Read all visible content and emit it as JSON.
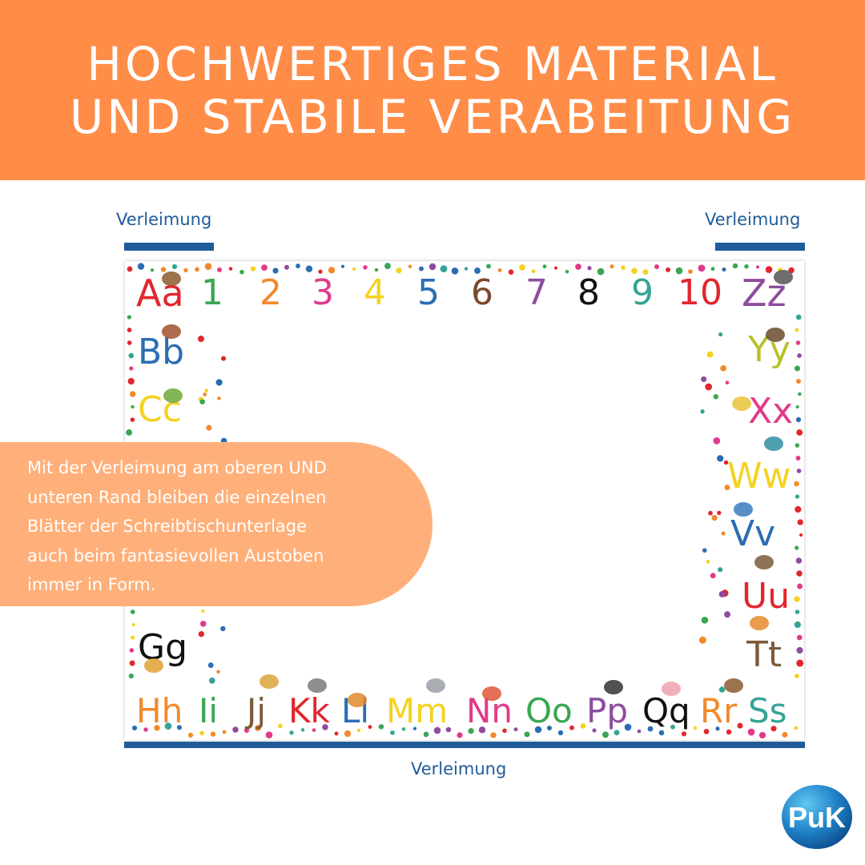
{
  "header": {
    "title_lines": [
      "HOCHWERTIGES MATERIAL",
      "UND STABILE VERABEITUNG"
    ],
    "background": "#ff8c47"
  },
  "glue_markers": {
    "top_left_label": "Verleimung",
    "top_right_label": "Verleimung",
    "bottom_label": "Verleimung",
    "color": "#1f5c99"
  },
  "mat": {
    "numbers": [
      "1",
      "2",
      "3",
      "4",
      "5",
      "6",
      "7",
      "8",
      "9",
      "10"
    ],
    "number_colors": [
      "#3aa651",
      "#f2892b",
      "#e23a8a",
      "#f4d21f",
      "#2b6db3",
      "#7b4a2a",
      "#8e4c9e",
      "#111111",
      "#35a394",
      "#e2262e"
    ],
    "top_corners": [
      {
        "text": "Aa",
        "color": "#e2262e"
      },
      {
        "text": "Zz",
        "color": "#8e4c9e"
      }
    ],
    "left_column": [
      {
        "text": "Bb",
        "color": "#2b6db3"
      },
      {
        "text": "Cc",
        "color": "#f4d21f"
      },
      {
        "text": "Gg",
        "color": "#111111"
      }
    ],
    "right_column": [
      {
        "text": "Yy",
        "color": "#b8c02a"
      },
      {
        "text": "Xx",
        "color": "#e23a8a"
      },
      {
        "text": "Ww",
        "color": "#f4d21f"
      },
      {
        "text": "Vv",
        "color": "#2b6db3"
      },
      {
        "text": "Uu",
        "color": "#e2262e"
      },
      {
        "text": "Tt",
        "color": "#7b5a3a"
      }
    ],
    "bottom_row": [
      {
        "text": "Hh",
        "color": "#f2892b"
      },
      {
        "text": "Ii",
        "color": "#3aa651"
      },
      {
        "text": "Jj",
        "color": "#7b5a3a"
      },
      {
        "text": "Kk",
        "color": "#e2262e"
      },
      {
        "text": "Ll",
        "color": "#2b6db3"
      },
      {
        "text": "Mm",
        "color": "#f4d21f"
      },
      {
        "text": "Nn",
        "color": "#e23a8a"
      },
      {
        "text": "Oo",
        "color": "#3aa651"
      },
      {
        "text": "Pp",
        "color": "#8e4c9e"
      },
      {
        "text": "Qq",
        "color": "#111111"
      },
      {
        "text": "Rr",
        "color": "#f2892b"
      },
      {
        "text": "Ss",
        "color": "#35a394"
      }
    ],
    "dot_colors": [
      "#e2262e",
      "#f2892b",
      "#f4d21f",
      "#3aa651",
      "#2b6db3",
      "#8e4c9e",
      "#e23a8a",
      "#35a394"
    ]
  },
  "callout": {
    "lines": [
      "Mit der Verleimung am oberen UND",
      "unteren Rand bleiben die einzelnen",
      "Blätter der Schreibtischunterlage",
      "auch beim fantasievollen Austoben",
      "immer in Form."
    ],
    "background": "#ffb07a"
  },
  "logo": {
    "text": "PuK",
    "icon": "puk-logo-icon"
  }
}
